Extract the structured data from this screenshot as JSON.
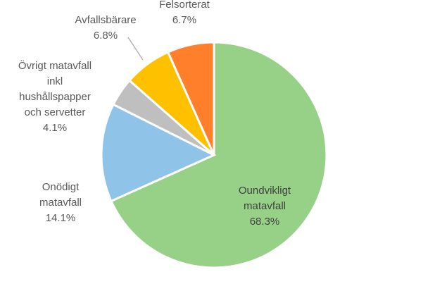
{
  "chart_data": {
    "type": "pie",
    "title": "",
    "start_angle_deg": 0,
    "direction": "clockwise",
    "slices": [
      {
        "name": "Oundvikligt matavfall",
        "label_lines": [
          "Oundvikligt",
          "matavfall",
          "68.3%"
        ],
        "value": 68.3,
        "display": "68.3%",
        "color": "#97d187"
      },
      {
        "name": "Onödigt matavfall",
        "label_lines": [
          "Onödigt",
          "matavfall",
          "14.1%"
        ],
        "value": 14.1,
        "display": "14.1%",
        "color": "#8fc3e7"
      },
      {
        "name": "Övrigt matavfall inkl hushållspapper och servetter",
        "label_lines": [
          "Övrigt matavfall",
          "inkl",
          "hushållspapper",
          "och servetter",
          "4.1%"
        ],
        "value": 4.1,
        "display": "4.1%",
        "color": "#bfbfbf"
      },
      {
        "name": "Avfallsbärare",
        "label_lines": [
          "Avfallsbärare",
          "6.8%"
        ],
        "value": 6.8,
        "display": "6.8%",
        "color": "#ffc000"
      },
      {
        "name": "Felsorterat",
        "label_lines": [
          "Felsorterat",
          "6.7%"
        ],
        "value": 6.7,
        "display": "6.7%",
        "color": "#ff7f2a"
      }
    ]
  }
}
